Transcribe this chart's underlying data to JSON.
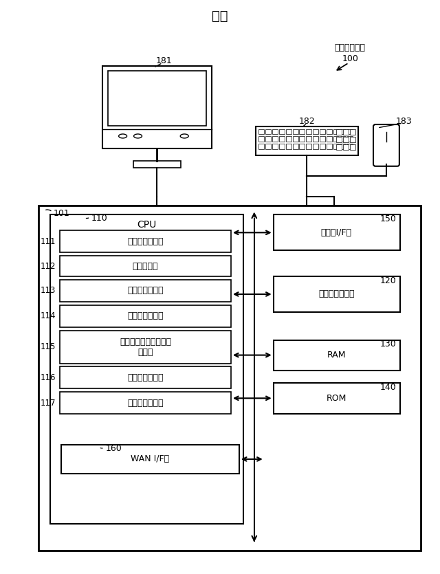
{
  "title": "図２",
  "bg_color": "#ffffff",
  "label_100": "（管理装置）\n100",
  "label_101": "101",
  "label_110": "110",
  "label_150": "150",
  "label_120": "120",
  "label_130": "130",
  "label_140": "140",
  "label_160": "160",
  "label_181": "181",
  "label_182": "182",
  "label_183": "183",
  "cpu_label": "CPU",
  "box_labels": [
    "配車要求受信部",
    "役割特定部",
    "配車場所特定部",
    "車両台数特定部",
    "ブロードキャスト命令\n送信部",
    "駆付車両決定部",
    "駆付命令送信部"
  ],
  "box_ids": [
    "111",
    "112",
    "113",
    "114",
    "115",
    "116",
    "117"
  ],
  "right_labels": [
    "入出力I/F部",
    "ハードディスク",
    "RAM",
    "ROM"
  ],
  "wan_label": "WAN I/F部"
}
